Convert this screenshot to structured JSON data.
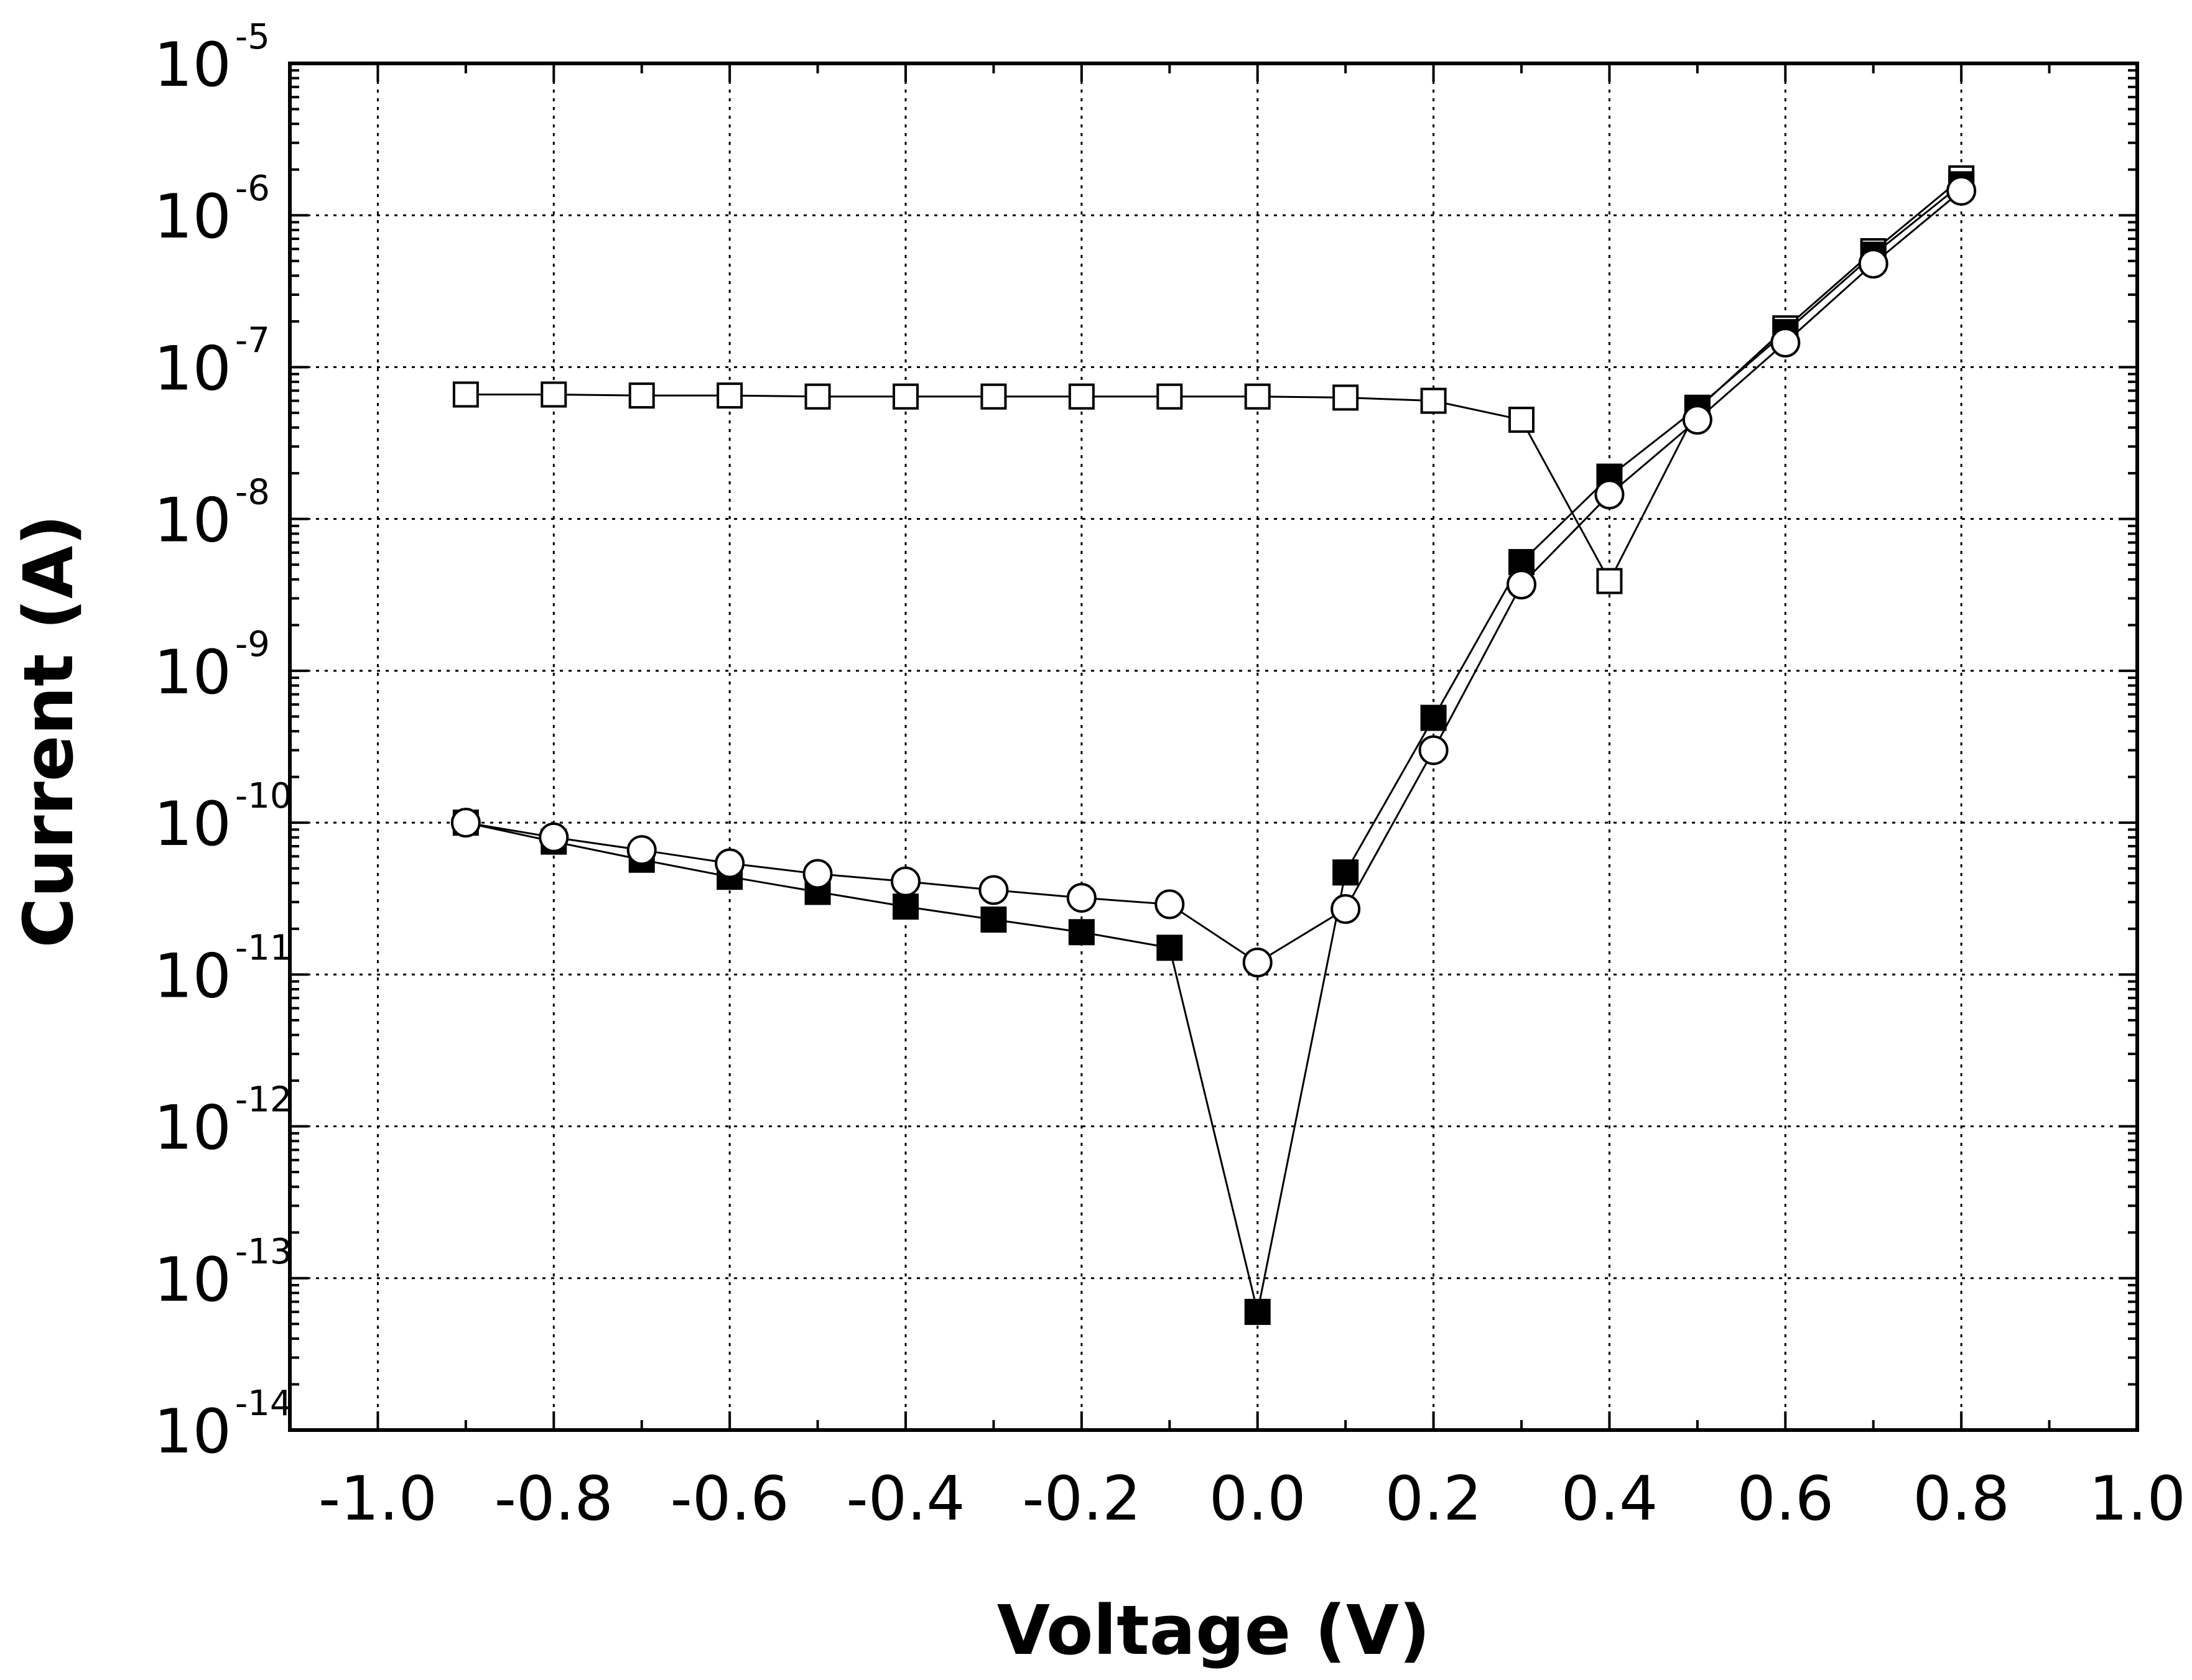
{
  "chart_data": {
    "type": "scatter",
    "title": "",
    "xlabel": "Voltage (V)",
    "ylabel": "Current (A)",
    "xlim": [
      -1.1,
      1.0
    ],
    "ylim": [
      1e-14,
      1e-05
    ],
    "yscale": "log",
    "grid": true,
    "legend": "none",
    "x_ticks": [
      "-1.0",
      "-0.8",
      "-0.6",
      "-0.4",
      "-0.2",
      "0.0",
      "0.2",
      "0.4",
      "0.6",
      "0.8",
      "1.0"
    ],
    "x_tick_values": [
      -1.0,
      -0.8,
      -0.6,
      -0.4,
      -0.2,
      0.0,
      0.2,
      0.4,
      0.6,
      0.8,
      1.0
    ],
    "y_ticks": [
      {
        "base": "10",
        "exp": "-5",
        "value": 1e-05
      },
      {
        "base": "10",
        "exp": "-6",
        "value": 1e-06
      },
      {
        "base": "10",
        "exp": "-7",
        "value": 1e-07
      },
      {
        "base": "10",
        "exp": "-8",
        "value": 1e-08
      },
      {
        "base": "10",
        "exp": "-9",
        "value": 1e-09
      },
      {
        "base": "10",
        "exp": "-10",
        "value": 1e-10
      },
      {
        "base": "10",
        "exp": "-11",
        "value": 1e-11
      },
      {
        "base": "10",
        "exp": "-12",
        "value": 1e-12
      },
      {
        "base": "10",
        "exp": "-13",
        "value": 1e-13
      },
      {
        "base": "10",
        "exp": "-14",
        "value": 1e-14
      }
    ],
    "series": [
      {
        "marker": "open-square",
        "x": [
          -0.9,
          -0.8,
          -0.7,
          -0.6,
          -0.5,
          -0.4,
          -0.3,
          -0.2,
          -0.1,
          0.0,
          0.1,
          0.2,
          0.3,
          0.4,
          0.5,
          0.6,
          0.7,
          0.8
        ],
        "y": [
          6.6e-08,
          6.6e-08,
          6.5e-08,
          6.5e-08,
          6.4e-08,
          6.4e-08,
          6.4e-08,
          6.4e-08,
          6.4e-08,
          6.4e-08,
          6.3e-08,
          6e-08,
          4.5e-08,
          3.9e-09,
          5.3e-08,
          1.8e-07,
          5.8e-07,
          1.75e-06
        ]
      },
      {
        "marker": "filled-square",
        "x": [
          -0.9,
          -0.8,
          -0.7,
          -0.6,
          -0.5,
          -0.4,
          -0.3,
          -0.2,
          -0.1,
          0.0,
          0.1,
          0.2,
          0.3,
          0.4,
          0.5,
          0.6,
          0.7,
          0.8
        ],
        "y": [
          1e-10,
          7.5e-11,
          5.7e-11,
          4.4e-11,
          3.5e-11,
          2.8e-11,
          2.3e-11,
          1.9e-11,
          1.5e-11,
          6e-14,
          4.7e-11,
          4.9e-10,
          5.2e-09,
          1.9e-08,
          5.4e-08,
          1.7e-07,
          5.5e-07,
          1.6e-06
        ]
      },
      {
        "marker": "open-circle",
        "x": [
          -0.9,
          -0.8,
          -0.7,
          -0.6,
          -0.5,
          -0.4,
          -0.3,
          -0.2,
          -0.1,
          0.0,
          0.1,
          0.2,
          0.3,
          0.4,
          0.5,
          0.6,
          0.7,
          0.8
        ],
        "y": [
          1e-10,
          8e-11,
          6.6e-11,
          5.4e-11,
          4.6e-11,
          4.1e-11,
          3.6e-11,
          3.2e-11,
          2.9e-11,
          1.2e-11,
          2.7e-11,
          3e-10,
          3.7e-09,
          1.45e-08,
          4.5e-08,
          1.45e-07,
          4.8e-07,
          1.45e-06
        ]
      }
    ]
  }
}
